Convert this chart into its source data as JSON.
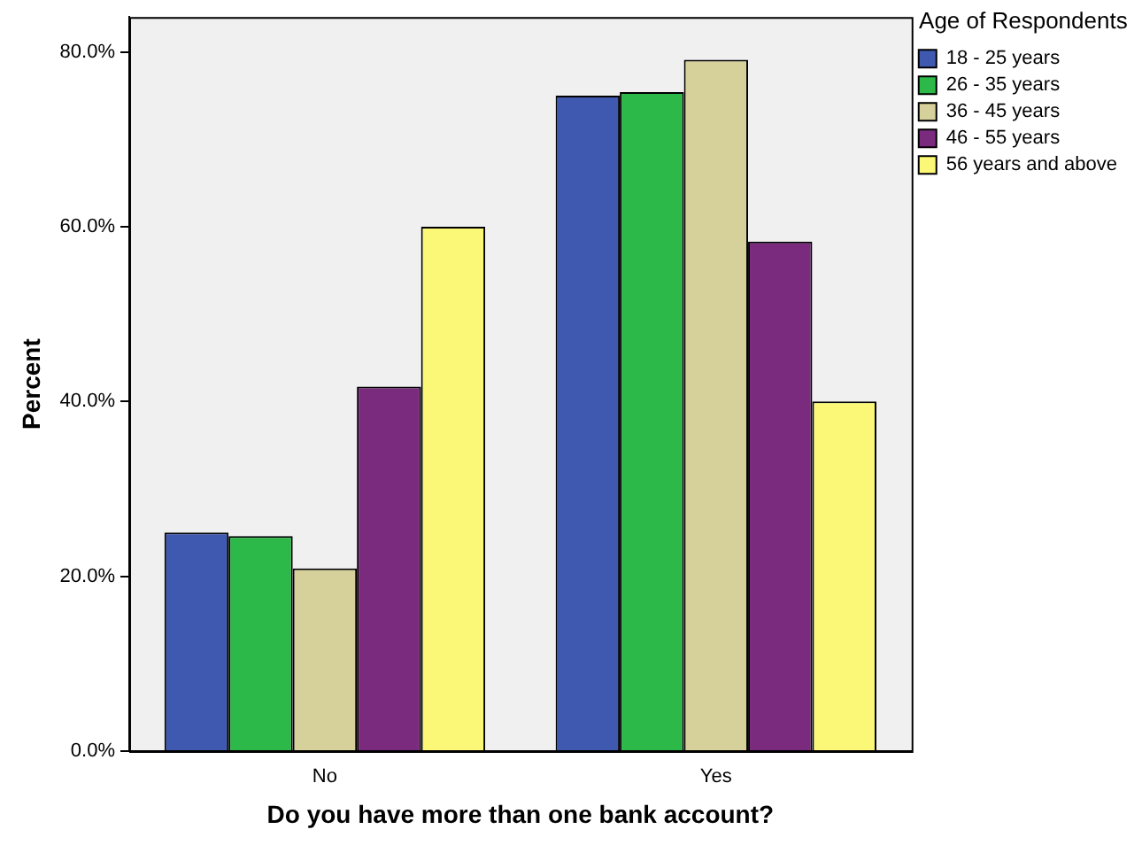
{
  "chart_data": {
    "type": "bar",
    "xlabel": "Do you have more than one bank account?",
    "ylabel": "Percent",
    "legend_title": "Age of Respondents",
    "categories": [
      "No",
      "Yes"
    ],
    "series": [
      {
        "name": "18 - 25 years",
        "color": "#3f58b0",
        "values": [
          25.0,
          75.0
        ]
      },
      {
        "name": "26 - 35 years",
        "color": "#2db84a",
        "values": [
          24.6,
          75.4
        ]
      },
      {
        "name": "36 - 45 years",
        "color": "#d6d09a",
        "values": [
          20.9,
          79.1
        ]
      },
      {
        "name": "46 - 55 years",
        "color": "#7b2b7d",
        "values": [
          41.7,
          58.3
        ]
      },
      {
        "name": "56 years and above",
        "color": "#fbf777",
        "values": [
          60.0,
          40.0
        ]
      }
    ],
    "ylim": [
      0,
      84
    ],
    "yticks": [
      {
        "value": 0,
        "label": "0.0%"
      },
      {
        "value": 20,
        "label": "20.0%"
      },
      {
        "value": 40,
        "label": "40.0%"
      },
      {
        "value": 60,
        "label": "60.0%"
      },
      {
        "value": 80,
        "label": "80.0%"
      }
    ],
    "grid": false,
    "legend": "top right"
  }
}
